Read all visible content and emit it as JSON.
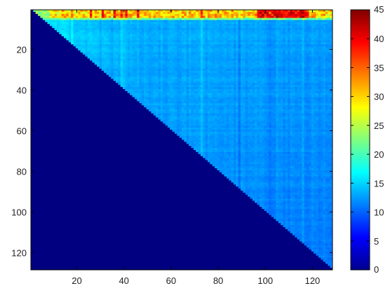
{
  "chart_data": {
    "type": "heatmap",
    "title": "",
    "xlabel": "",
    "ylabel": "",
    "matrix_size": 128,
    "layout": "upper triangular (lower triangle filled with 0)",
    "x_ticks": [
      20,
      40,
      60,
      80,
      100,
      120
    ],
    "y_ticks": [
      20,
      40,
      60,
      80,
      100,
      120
    ],
    "y_axis_direction": "reversed (1 at top)",
    "grid": false,
    "colorbar": {
      "position": "right",
      "colormap": "jet",
      "range": [
        0,
        45
      ],
      "ticks": [
        0,
        5,
        10,
        15,
        20,
        25,
        30,
        35,
        40,
        45
      ]
    },
    "value_summary": {
      "lower_triangle": 0,
      "upper_triangle_typical": [
        11,
        15
      ],
      "first_rows_1_to_5": [
        25,
        45
      ],
      "near_diagonal_first_rows": [
        18,
        24
      ],
      "diagonal": 0
    }
  }
}
